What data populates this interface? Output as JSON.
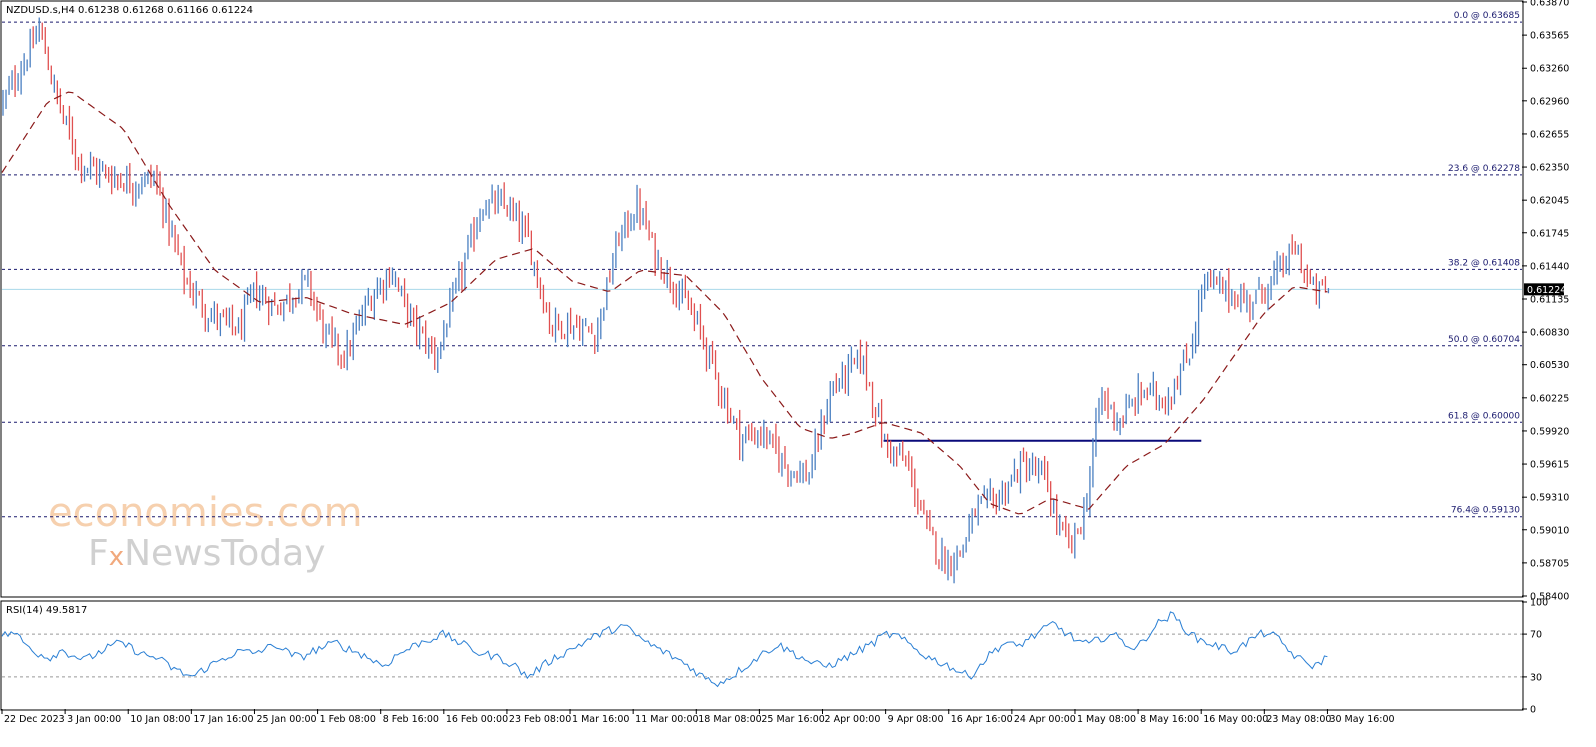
{
  "colors": {
    "bull_candle": "#4a7fc1",
    "bear_candle": "#e05050",
    "moving_average": "#8b1a1a",
    "fib_lines": "#1a1a6e",
    "current_price_line": "#a8d8ea",
    "support_line": "#0a0a7a",
    "rsi_line": "#2a7fd4",
    "rsi_levels": "#999999"
  },
  "price_label": "0.61224",
  "watermark": {
    "line1": "economies.com",
    "line2_prefix": "F",
    "line2_x": "x",
    "line2_suffix": "NewsToday"
  },
  "chart_data": [
    {
      "type": "candlestick",
      "symbol_header": "NZDUSD.s,H4  0.61238 0.61268 0.61166 0.61224",
      "ohlc": {
        "open": 0.61238,
        "high": 0.61268,
        "low": 0.61166,
        "close": 0.61224
      },
      "ylim": [
        0.584,
        0.6387
      ],
      "y_ticks": [
        "0.63870",
        "0.63565",
        "0.63260",
        "0.62960",
        "0.62655",
        "0.62350",
        "0.62045",
        "0.61745",
        "0.61440",
        "0.61135",
        "0.60830",
        "0.60530",
        "0.60225",
        "0.59920",
        "0.59615",
        "0.59310",
        "0.59010",
        "0.58705",
        "0.58400"
      ],
      "x_ticks": [
        "22 Dec 2023",
        "3 Jan 00:00",
        "10 Jan 08:00",
        "17 Jan 16:00",
        "25 Jan 00:00",
        "1 Feb 08:00",
        "8 Feb 16:00",
        "16 Feb 00:00",
        "23 Feb 08:00",
        "1 Mar 16:00",
        "11 Mar 00:00",
        "18 Mar 08:00",
        "25 Mar 16:00",
        "2 Apr 00:00",
        "9 Apr 08:00",
        "16 Apr 16:00",
        "24 Apr 00:00",
        "1 May 08:00",
        "8 May 16:00",
        "16 May 00:00",
        "23 May 08:00",
        "30 May 16:00"
      ],
      "fibonacci_levels": [
        {
          "label": "0.0 @ 0.63685",
          "value": 0.63685
        },
        {
          "label": "23.6 @ 0.62278",
          "value": 0.62278
        },
        {
          "label": "38.2 @ 0.61408",
          "value": 0.61408
        },
        {
          "label": "50.0 @ 0.60704",
          "value": 0.60704
        },
        {
          "label": "61.8 @ 0.60000",
          "value": 0.6
        },
        {
          "label": "76.4@ 0.59130",
          "value": 0.5913
        }
      ],
      "current_price": 0.61224,
      "support_level": 0.5983,
      "close_path": [
        [
          0,
          0.6295
        ],
        [
          0.017,
          0.634
        ],
        [
          0.024,
          0.6363
        ],
        [
          0.035,
          0.63
        ],
        [
          0.05,
          0.624
        ],
        [
          0.065,
          0.623
        ],
        [
          0.085,
          0.622
        ],
        [
          0.1,
          0.6225
        ],
        [
          0.12,
          0.613
        ],
        [
          0.135,
          0.61
        ],
        [
          0.155,
          0.6085
        ],
        [
          0.165,
          0.612
        ],
        [
          0.18,
          0.6105
        ],
        [
          0.2,
          0.613
        ],
        [
          0.212,
          0.608
        ],
        [
          0.225,
          0.606
        ],
        [
          0.24,
          0.611
        ],
        [
          0.255,
          0.614
        ],
        [
          0.27,
          0.609
        ],
        [
          0.285,
          0.606
        ],
        [
          0.3,
          0.613
        ],
        [
          0.315,
          0.62
        ],
        [
          0.33,
          0.62
        ],
        [
          0.345,
          0.617
        ],
        [
          0.36,
          0.609
        ],
        [
          0.375,
          0.609
        ],
        [
          0.39,
          0.608
        ],
        [
          0.405,
          0.617
        ],
        [
          0.418,
          0.62
        ],
        [
          0.43,
          0.615
        ],
        [
          0.445,
          0.612
        ],
        [
          0.46,
          0.608
        ],
        [
          0.472,
          0.603
        ],
        [
          0.485,
          0.5985
        ],
        [
          0.5,
          0.599
        ],
        [
          0.515,
          0.596
        ],
        [
          0.53,
          0.595
        ],
        [
          0.545,
          0.603
        ],
        [
          0.565,
          0.606
        ],
        [
          0.58,
          0.598
        ],
        [
          0.595,
          0.596
        ],
        [
          0.608,
          0.59
        ],
        [
          0.62,
          0.587
        ],
        [
          0.63,
          0.588
        ],
        [
          0.64,
          0.592
        ],
        [
          0.655,
          0.593
        ],
        [
          0.67,
          0.596
        ],
        [
          0.685,
          0.595
        ],
        [
          0.695,
          0.59
        ],
        [
          0.703,
          0.5885
        ],
        [
          0.712,
          0.592
        ],
        [
          0.722,
          0.6025
        ],
        [
          0.735,
          0.6
        ],
        [
          0.75,
          0.603
        ],
        [
          0.765,
          0.602
        ],
        [
          0.78,
          0.606
        ],
        [
          0.79,
          0.613
        ],
        [
          0.805,
          0.612
        ],
        [
          0.82,
          0.611
        ],
        [
          0.835,
          0.613
        ],
        [
          0.85,
          0.616
        ],
        [
          0.862,
          0.612
        ],
        [
          0.872,
          0.6122
        ]
      ],
      "moving_average_path": [
        [
          0,
          0.623
        ],
        [
          0.03,
          0.6295
        ],
        [
          0.045,
          0.6305
        ],
        [
          0.08,
          0.627
        ],
        [
          0.11,
          0.62
        ],
        [
          0.14,
          0.614
        ],
        [
          0.17,
          0.611
        ],
        [
          0.2,
          0.6115
        ],
        [
          0.23,
          0.61
        ],
        [
          0.265,
          0.609
        ],
        [
          0.295,
          0.611
        ],
        [
          0.325,
          0.615
        ],
        [
          0.35,
          0.616
        ],
        [
          0.375,
          0.613
        ],
        [
          0.4,
          0.612
        ],
        [
          0.42,
          0.614
        ],
        [
          0.45,
          0.6135
        ],
        [
          0.475,
          0.61
        ],
        [
          0.5,
          0.604
        ],
        [
          0.525,
          0.5995
        ],
        [
          0.545,
          0.5985
        ],
        [
          0.56,
          0.599
        ],
        [
          0.58,
          0.6
        ],
        [
          0.605,
          0.599
        ],
        [
          0.63,
          0.596
        ],
        [
          0.65,
          0.5925
        ],
        [
          0.67,
          0.5915
        ],
        [
          0.69,
          0.593
        ],
        [
          0.715,
          0.592
        ],
        [
          0.74,
          0.596
        ],
        [
          0.765,
          0.598
        ],
        [
          0.79,
          0.602
        ],
        [
          0.81,
          0.606
        ],
        [
          0.83,
          0.61
        ],
        [
          0.85,
          0.6125
        ],
        [
          0.872,
          0.612
        ]
      ]
    },
    {
      "type": "line",
      "title": "RSI(14) 49.5817",
      "ylim": [
        0,
        100
      ],
      "y_ticks": [
        "100",
        "70",
        "30",
        "0"
      ],
      "levels": [
        70,
        30
      ],
      "values": [
        68,
        72,
        60,
        52,
        48,
        55,
        50,
        46,
        52,
        58,
        62,
        56,
        50,
        48,
        40,
        34,
        30,
        38,
        44,
        50,
        54,
        52,
        56,
        60,
        52,
        48,
        54,
        58,
        62,
        56,
        52,
        46,
        40,
        50,
        56,
        62,
        66,
        70,
        64,
        58,
        52,
        50,
        46,
        40,
        30,
        38,
        46,
        52,
        58,
        64,
        70,
        74,
        78,
        70,
        62,
        56,
        50,
        44,
        36,
        28,
        24,
        30,
        38,
        46,
        54,
        60,
        54,
        48,
        42,
        40,
        44,
        50,
        56,
        62,
        70,
        68,
        60,
        52,
        46,
        42,
        36,
        30,
        42,
        54,
        62,
        58,
        66,
        72,
        80,
        72,
        64,
        60,
        66,
        70,
        62,
        56,
        70,
        82,
        88,
        76,
        66,
        62,
        58,
        54,
        60,
        68,
        72,
        64,
        52,
        44,
        40,
        50
      ]
    }
  ]
}
